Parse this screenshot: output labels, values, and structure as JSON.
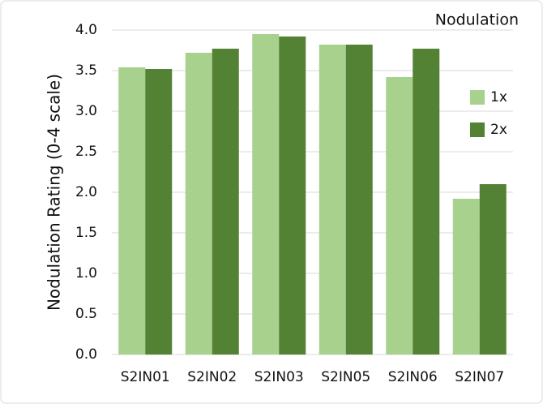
{
  "chart_data": {
    "type": "bar",
    "title": "Nodulation",
    "y_label": "Nodulation Rating (0-4 scale)",
    "categories": [
      "S2IN01",
      "S2IN02",
      "S2IN03",
      "S2IN05",
      "S2IN06",
      "S2IN07"
    ],
    "series": [
      {
        "name": "1x",
        "color": "#a9d18e",
        "values": [
          3.54,
          3.72,
          3.95,
          3.82,
          3.42,
          1.92
        ]
      },
      {
        "name": "2x",
        "color": "#548235",
        "values": [
          3.52,
          3.77,
          3.92,
          3.82,
          3.77,
          2.1
        ]
      }
    ],
    "ylim": [
      0,
      4
    ],
    "yticks": [
      {
        "value": 0,
        "label": "0.0"
      },
      0.5,
      {
        "value": 1,
        "label": "1.0"
      },
      1.5,
      {
        "value": 2,
        "label": "2.0"
      },
      2.5,
      {
        "value": 3,
        "label": "3.0"
      },
      3.5,
      {
        "value": 4,
        "label": "4.0"
      }
    ],
    "grid": true,
    "legend": "right"
  }
}
